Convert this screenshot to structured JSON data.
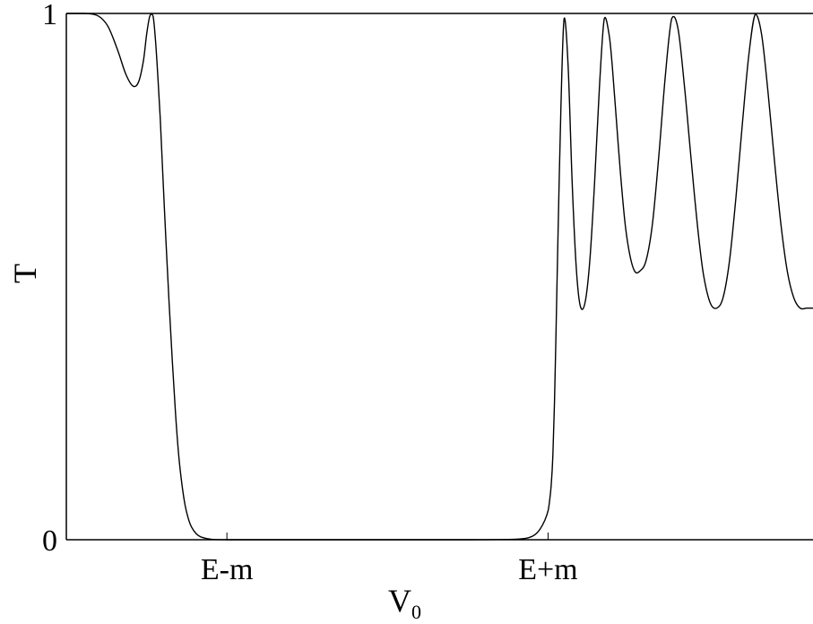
{
  "chart_data": {
    "type": "line",
    "title": "",
    "xlabel": "V",
    "xlabel_subscript": "0",
    "ylabel": "T",
    "x_ticks": [
      {
        "x": -1,
        "label": "E-m"
      },
      {
        "x": 1,
        "label": "E+m"
      }
    ],
    "y_ticks": [
      {
        "y": 0,
        "label": "0"
      },
      {
        "y": 1,
        "label": "1"
      }
    ],
    "xlim": [
      -2.0,
      2.65
    ],
    "ylim": [
      0,
      1
    ],
    "grid": false,
    "legend": "none",
    "series": [
      {
        "color": "#000000",
        "x": [
          -2.0,
          -1.88,
          -1.8,
          -1.74,
          -1.68,
          -1.63,
          -1.585,
          -1.55,
          -1.52,
          -1.5,
          -1.48,
          -1.46,
          -1.445,
          -1.43,
          -1.415,
          -1.4,
          -1.38,
          -1.36,
          -1.34,
          -1.32,
          -1.3,
          -1.28,
          -1.26,
          -1.24,
          -1.22,
          -1.19,
          -1.16,
          -1.1,
          -1.0,
          -0.8,
          -0.5,
          0.0,
          0.5,
          0.8,
          0.88,
          0.92,
          0.95,
          0.98,
          1.0,
          1.01,
          1.02,
          1.03,
          1.04,
          1.05,
          1.06,
          1.08,
          1.1,
          1.125,
          1.15,
          1.175,
          1.2,
          1.23,
          1.26,
          1.29,
          1.32,
          1.35,
          1.38,
          1.4,
          1.42,
          1.45,
          1.48,
          1.51,
          1.54,
          1.57,
          1.61,
          1.65,
          1.69,
          1.73,
          1.77,
          1.81,
          1.85,
          1.88,
          1.91,
          1.94,
          1.97,
          2.01,
          2.05,
          2.09,
          2.13,
          2.17,
          2.21,
          2.25,
          2.29,
          2.33,
          2.37,
          2.41,
          2.45,
          2.49,
          2.53,
          2.57,
          2.61,
          2.65
        ],
        "y": [
          1.0,
          1.0,
          0.995,
          0.975,
          0.93,
          0.885,
          0.862,
          0.87,
          0.91,
          0.96,
          0.995,
          0.995,
          0.95,
          0.88,
          0.8,
          0.7,
          0.57,
          0.45,
          0.34,
          0.24,
          0.16,
          0.105,
          0.065,
          0.04,
          0.024,
          0.011,
          0.005,
          0.001,
          0.0,
          0.0,
          0.0,
          0.0,
          0.0,
          0.001,
          0.004,
          0.01,
          0.02,
          0.037,
          0.055,
          0.075,
          0.105,
          0.16,
          0.26,
          0.4,
          0.55,
          0.82,
          0.99,
          0.9,
          0.68,
          0.52,
          0.445,
          0.45,
          0.53,
          0.68,
          0.86,
          0.99,
          0.96,
          0.9,
          0.82,
          0.7,
          0.6,
          0.54,
          0.51,
          0.51,
          0.53,
          0.6,
          0.73,
          0.88,
          0.99,
          0.97,
          0.86,
          0.76,
          0.66,
          0.57,
          0.5,
          0.45,
          0.44,
          0.46,
          0.53,
          0.65,
          0.79,
          0.92,
          0.998,
          0.96,
          0.85,
          0.72,
          0.6,
          0.51,
          0.46,
          0.44,
          0.44,
          0.44
        ]
      }
    ]
  }
}
